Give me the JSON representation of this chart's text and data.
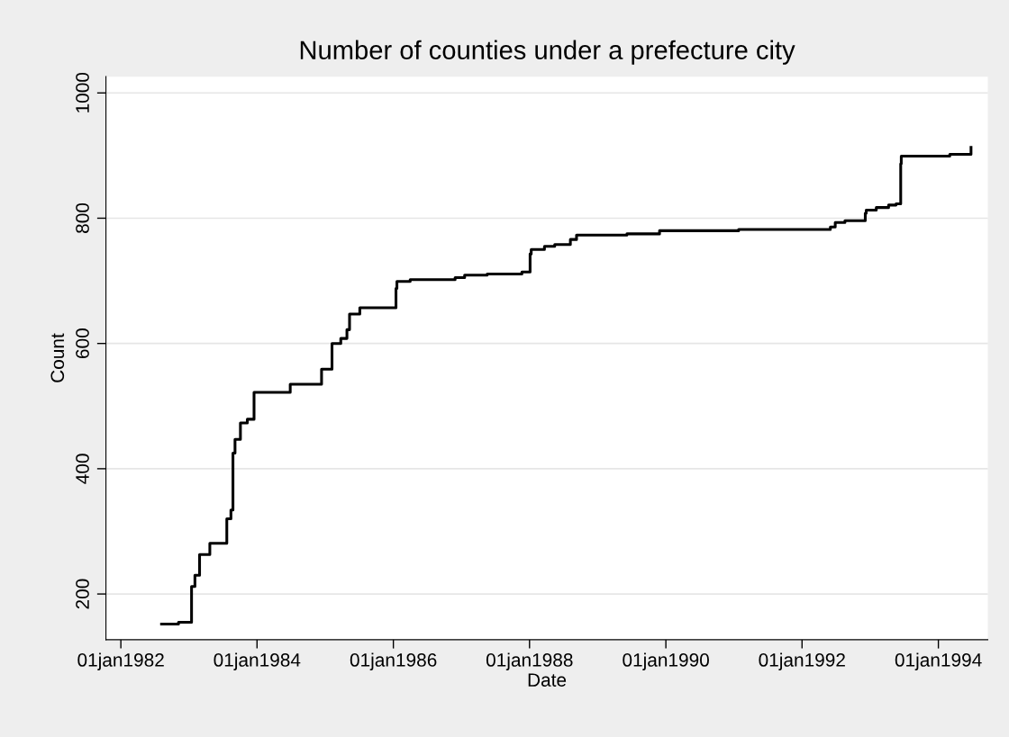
{
  "chart_data": {
    "type": "step",
    "title": "Number of counties under a prefecture city",
    "xlabel": "Date",
    "ylabel": "Count",
    "x": [
      "1982-08-07",
      "1982-11-06",
      "1983-01-15",
      "1983-02-02",
      "1983-02-27",
      "1983-04-23",
      "1983-07-23",
      "1983-08-14",
      "1983-08-25",
      "1983-09-05",
      "1983-10-04",
      "1983-11-10",
      "1983-12-16",
      "1984-06-27",
      "1984-12-12",
      "1985-02-06",
      "1985-03-25",
      "1985-04-27",
      "1985-05-11",
      "1985-07-05",
      "1986-01-15",
      "1986-01-20",
      "1986-04-01",
      "1986-11-28",
      "1987-01-18",
      "1987-05-19",
      "1987-11-21",
      "1988-01-04",
      "1988-01-10",
      "1988-03-21",
      "1988-05-15",
      "1988-08-07",
      "1988-09-09",
      "1989-06-06",
      "1989-11-28",
      "1991-01-26",
      "1992-06-01",
      "1992-06-27",
      "1992-08-18",
      "1992-12-05",
      "1992-12-10",
      "1993-02-02",
      "1993-04-09",
      "1993-05-19",
      "1993-06-13",
      "1993-06-16",
      "1994-03-03",
      "1994-06-24",
      "1994-06-25"
    ],
    "series": [
      {
        "color": "#000000",
        "values": [
          152,
          155,
          212,
          230,
          263,
          281,
          320,
          334,
          425,
          447,
          473,
          479,
          522,
          535,
          559,
          600,
          608,
          622,
          647,
          657,
          688,
          699,
          702,
          705,
          709,
          711,
          714,
          743,
          750,
          755,
          758,
          766,
          773,
          775,
          780,
          782,
          786,
          793,
          796,
          808,
          813,
          817,
          821,
          823,
          887,
          899,
          902,
          902,
          913
        ]
      }
    ],
    "xlim": [
      "1981-10-13",
      "1994-09-23"
    ],
    "xticks": [
      {
        "value": "1982-01-01",
        "label": "01jan1982"
      },
      {
        "value": "1984-01-01",
        "label": "01jan1984"
      },
      {
        "value": "1986-01-01",
        "label": "01jan1986"
      },
      {
        "value": "1988-01-01",
        "label": "01jan1988"
      },
      {
        "value": "1990-01-01",
        "label": "01jan1990"
      },
      {
        "value": "1992-01-01",
        "label": "01jan1992"
      },
      {
        "value": "1994-01-01",
        "label": "01jan1994"
      }
    ],
    "ylim": [
      127,
      1026
    ],
    "yticks": [
      200,
      400,
      600,
      800,
      1000
    ],
    "grid": "y",
    "line_style": "solid"
  }
}
